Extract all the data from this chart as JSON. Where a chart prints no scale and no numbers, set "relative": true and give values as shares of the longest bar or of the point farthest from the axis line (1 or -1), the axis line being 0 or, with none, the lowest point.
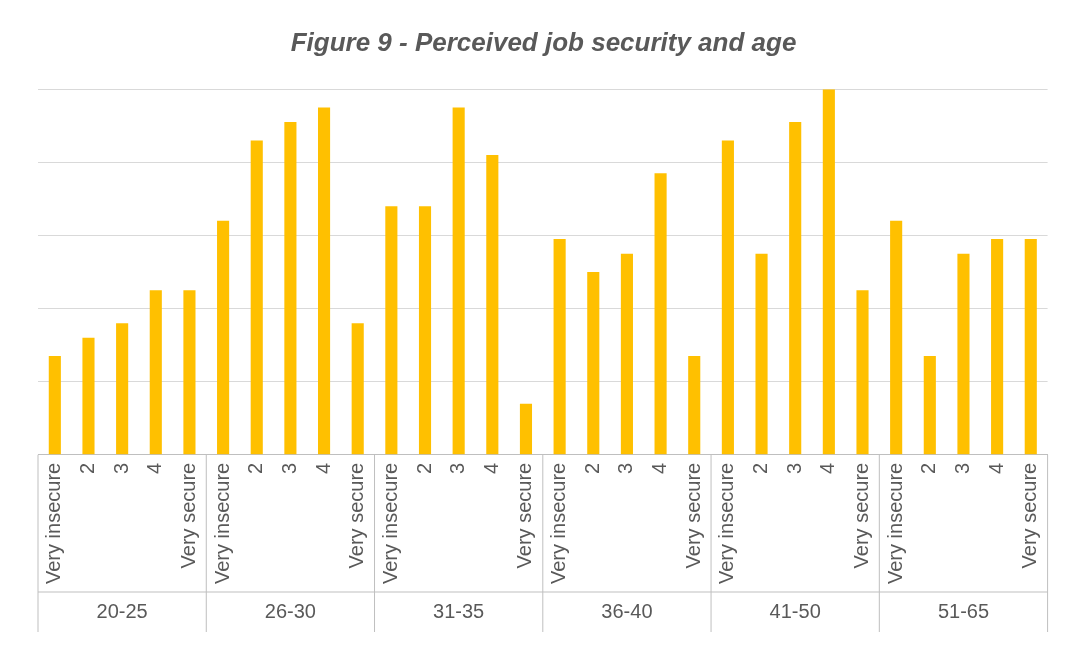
{
  "chart_data": {
    "type": "bar",
    "title": "Figure 9 - Perceived job security and age",
    "relative": true,
    "color": "#ffc000",
    "grid": "y",
    "legend": false,
    "categories": [
      "Very insecure",
      "2",
      "3",
      "4",
      "Very secure",
      "Very insecure",
      "2",
      "3",
      "4",
      "Very secure",
      "Very insecure",
      "2",
      "3",
      "4",
      "Very secure",
      "Very insecure",
      "2",
      "3",
      "4",
      "Very secure",
      "Very insecure",
      "2",
      "3",
      "4",
      "Very secure",
      "Very insecure",
      "2",
      "3",
      "4",
      "Very secure"
    ],
    "values": [
      0.27,
      0.32,
      0.36,
      0.45,
      0.45,
      0.64,
      0.86,
      0.91,
      0.95,
      0.36,
      0.68,
      0.68,
      0.95,
      0.82,
      0.14,
      0.59,
      0.5,
      0.55,
      0.77,
      0.27,
      0.86,
      0.55,
      0.91,
      1,
      0.45,
      0.64,
      0.27,
      0.55,
      0.59,
      0.59
    ],
    "annotations": [
      "20-25",
      "26-30",
      "31-35",
      "36-40",
      "41-50",
      "51-65"
    ]
  }
}
